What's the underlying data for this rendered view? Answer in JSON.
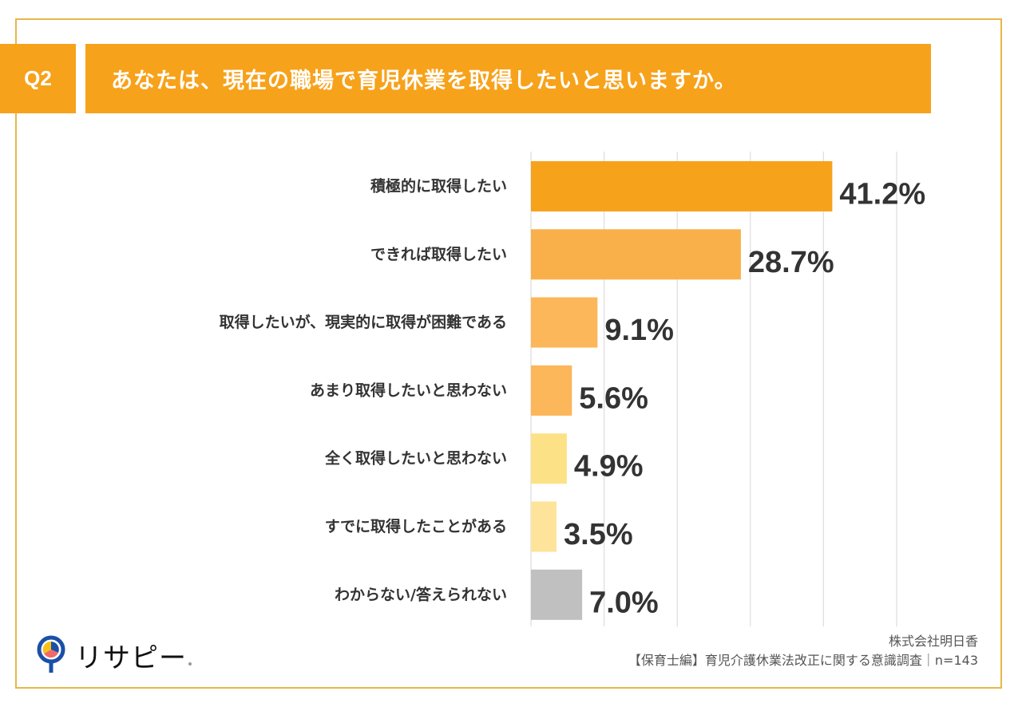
{
  "header": {
    "question_number": "Q2",
    "question_text": "あなたは、現在の職場で育児休業を取得したいと思いますか。"
  },
  "colors": {
    "accent": "#f7a21b",
    "frame": "#e8b74a",
    "gridline": "#dddddd",
    "text": "#333333"
  },
  "chart_data": {
    "type": "bar",
    "orientation": "horizontal",
    "title": "あなたは、現在の職場で育児休業を取得したいと思いますか。",
    "xlabel": "",
    "ylabel": "",
    "xlim": [
      0,
      50
    ],
    "grid": true,
    "gridline_values": [
      0,
      10,
      20,
      30,
      40,
      50
    ],
    "unit": "%",
    "categories": [
      "積極的に取得したい",
      "できれば取得したい",
      "取得したいが、現実的に取得が困難である",
      "あまり取得したいと思わない",
      "全く取得したいと思わない",
      "すでに取得したことがある",
      "わからない/答えられない"
    ],
    "values": [
      41.2,
      28.7,
      9.1,
      5.6,
      4.9,
      3.5,
      7.0
    ],
    "value_labels": [
      "41.2%",
      "28.7%",
      "9.1%",
      "5.6%",
      "4.9%",
      "3.5%",
      "7.0%"
    ],
    "bar_colors": [
      "#f7a21b",
      "#f9b04a",
      "#fbb75a",
      "#fbb75a",
      "#fde187",
      "#fde49a",
      "#c0c0c0"
    ],
    "sample_size": "n=143"
  },
  "footer": {
    "logo_text": "リサピー",
    "company": "株式会社明日香",
    "survey": "【保育士編】育児介護休業法改正に関する意識調査｜n=143"
  }
}
